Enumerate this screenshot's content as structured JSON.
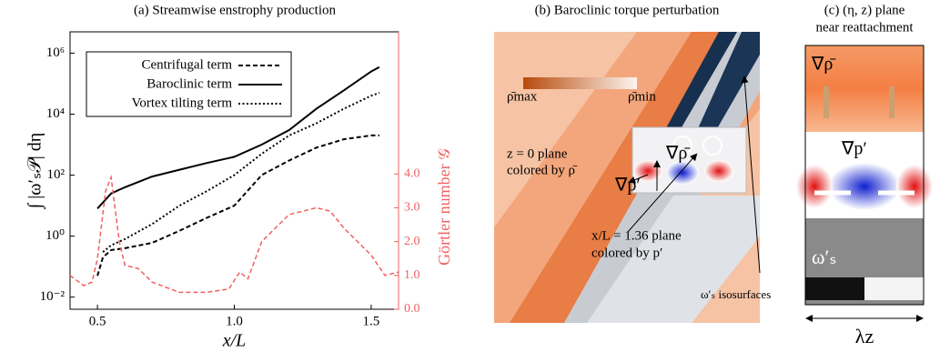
{
  "chart_data": {
    "type": "line",
    "title": "(a) Streamwise enstrophy production",
    "xlabel": "x/L",
    "ylabel": "∫ |ω′ₛ𝒫| dη",
    "y2label": "Görtler number 𝒢",
    "xlim": [
      0.4,
      1.6
    ],
    "xticks": [
      0.5,
      {
        "value": 1,
        "label": "1.0"
      },
      1.5
    ],
    "ylim": [
      0.004,
      5000000
    ],
    "ylog": true,
    "yticks": [
      {
        "value": 0.01,
        "label": "10⁻²"
      },
      {
        "value": 1,
        "label": "10⁰"
      },
      {
        "value": 100,
        "label": "10²"
      },
      {
        "value": 10000,
        "label": "10⁴"
      },
      {
        "value": 1000000,
        "label": "10⁶"
      }
    ],
    "y2lim": [
      0,
      8.2
    ],
    "y2ticks": [
      {
        "value": 0,
        "label": "0.0"
      },
      {
        "value": 1,
        "label": "1.0"
      },
      {
        "value": 2,
        "label": "2.0"
      },
      {
        "value": 3,
        "label": "3.0"
      },
      {
        "value": 4,
        "label": "4.0"
      }
    ],
    "legend": "upper left",
    "series": [
      {
        "name": "Centrifugal term",
        "color": "#000000",
        "linestyle": "dashed",
        "x": [
          0.5,
          0.52,
          0.55,
          0.6,
          0.7,
          0.8,
          0.9,
          1.0,
          1.1,
          1.2,
          1.3,
          1.4,
          1.5,
          1.53
        ],
        "values": [
          0.05,
          0.2,
          0.35,
          0.4,
          0.6,
          1.5,
          4,
          10,
          100,
          300,
          800,
          1500,
          2000,
          2000
        ]
      },
      {
        "name": "Baroclinic term",
        "color": "#000000",
        "linestyle": "solid",
        "x": [
          0.5,
          0.55,
          0.6,
          0.7,
          0.8,
          0.9,
          1.0,
          1.1,
          1.2,
          1.3,
          1.4,
          1.5,
          1.53
        ],
        "values": [
          8,
          25,
          40,
          90,
          150,
          250,
          400,
          1000,
          3000,
          15000,
          60000,
          250000,
          350000
        ]
      },
      {
        "name": "Vortex tilting term",
        "color": "#000000",
        "linestyle": "dotted",
        "x": [
          0.52,
          0.55,
          0.6,
          0.7,
          0.8,
          0.9,
          1.0,
          1.1,
          1.2,
          1.3,
          1.4,
          1.5,
          1.53
        ],
        "values": [
          0.3,
          0.5,
          0.8,
          2.5,
          10,
          30,
          100,
          500,
          2000,
          5000,
          15000,
          40000,
          50000
        ]
      },
      {
        "name": "Görtler number",
        "color": "#f06060",
        "linestyle": "dashed",
        "axis": "y2",
        "x": [
          0.4,
          0.45,
          0.48,
          0.5,
          0.53,
          0.55,
          0.58,
          0.6,
          0.65,
          0.7,
          0.8,
          0.9,
          0.98,
          1.02,
          1.05,
          1.1,
          1.2,
          1.3,
          1.35,
          1.4,
          1.5,
          1.55,
          1.6
        ],
        "values": [
          1.0,
          0.7,
          0.8,
          1.5,
          3.5,
          3.9,
          2.0,
          1.3,
          1.2,
          0.8,
          0.5,
          0.5,
          0.6,
          1.1,
          0.9,
          2.0,
          2.8,
          3.0,
          2.9,
          2.4,
          1.6,
          1.0,
          1.1
        ]
      }
    ]
  },
  "panel_b": {
    "title": "(b) Baroclinic torque perturbation",
    "rho_max": "ρ̄max",
    "rho_min": "ρ̄min",
    "z_plane": [
      "z = 0 plane",
      "colored by ρ̄"
    ],
    "grad_rho": "∇ρ̄",
    "grad_p": "∇p′",
    "x_plane": [
      "x/L = 1.36 plane",
      "colored by p′"
    ],
    "isosurfaces": "ω′ₛ isosurfaces"
  },
  "panel_c": {
    "title": [
      "(c) (η, z) plane",
      "near reattachment"
    ],
    "grad_rho": "∇ρ̄",
    "grad_p": "∇p′",
    "omega": "ω′ₛ",
    "lambda": "λz"
  }
}
